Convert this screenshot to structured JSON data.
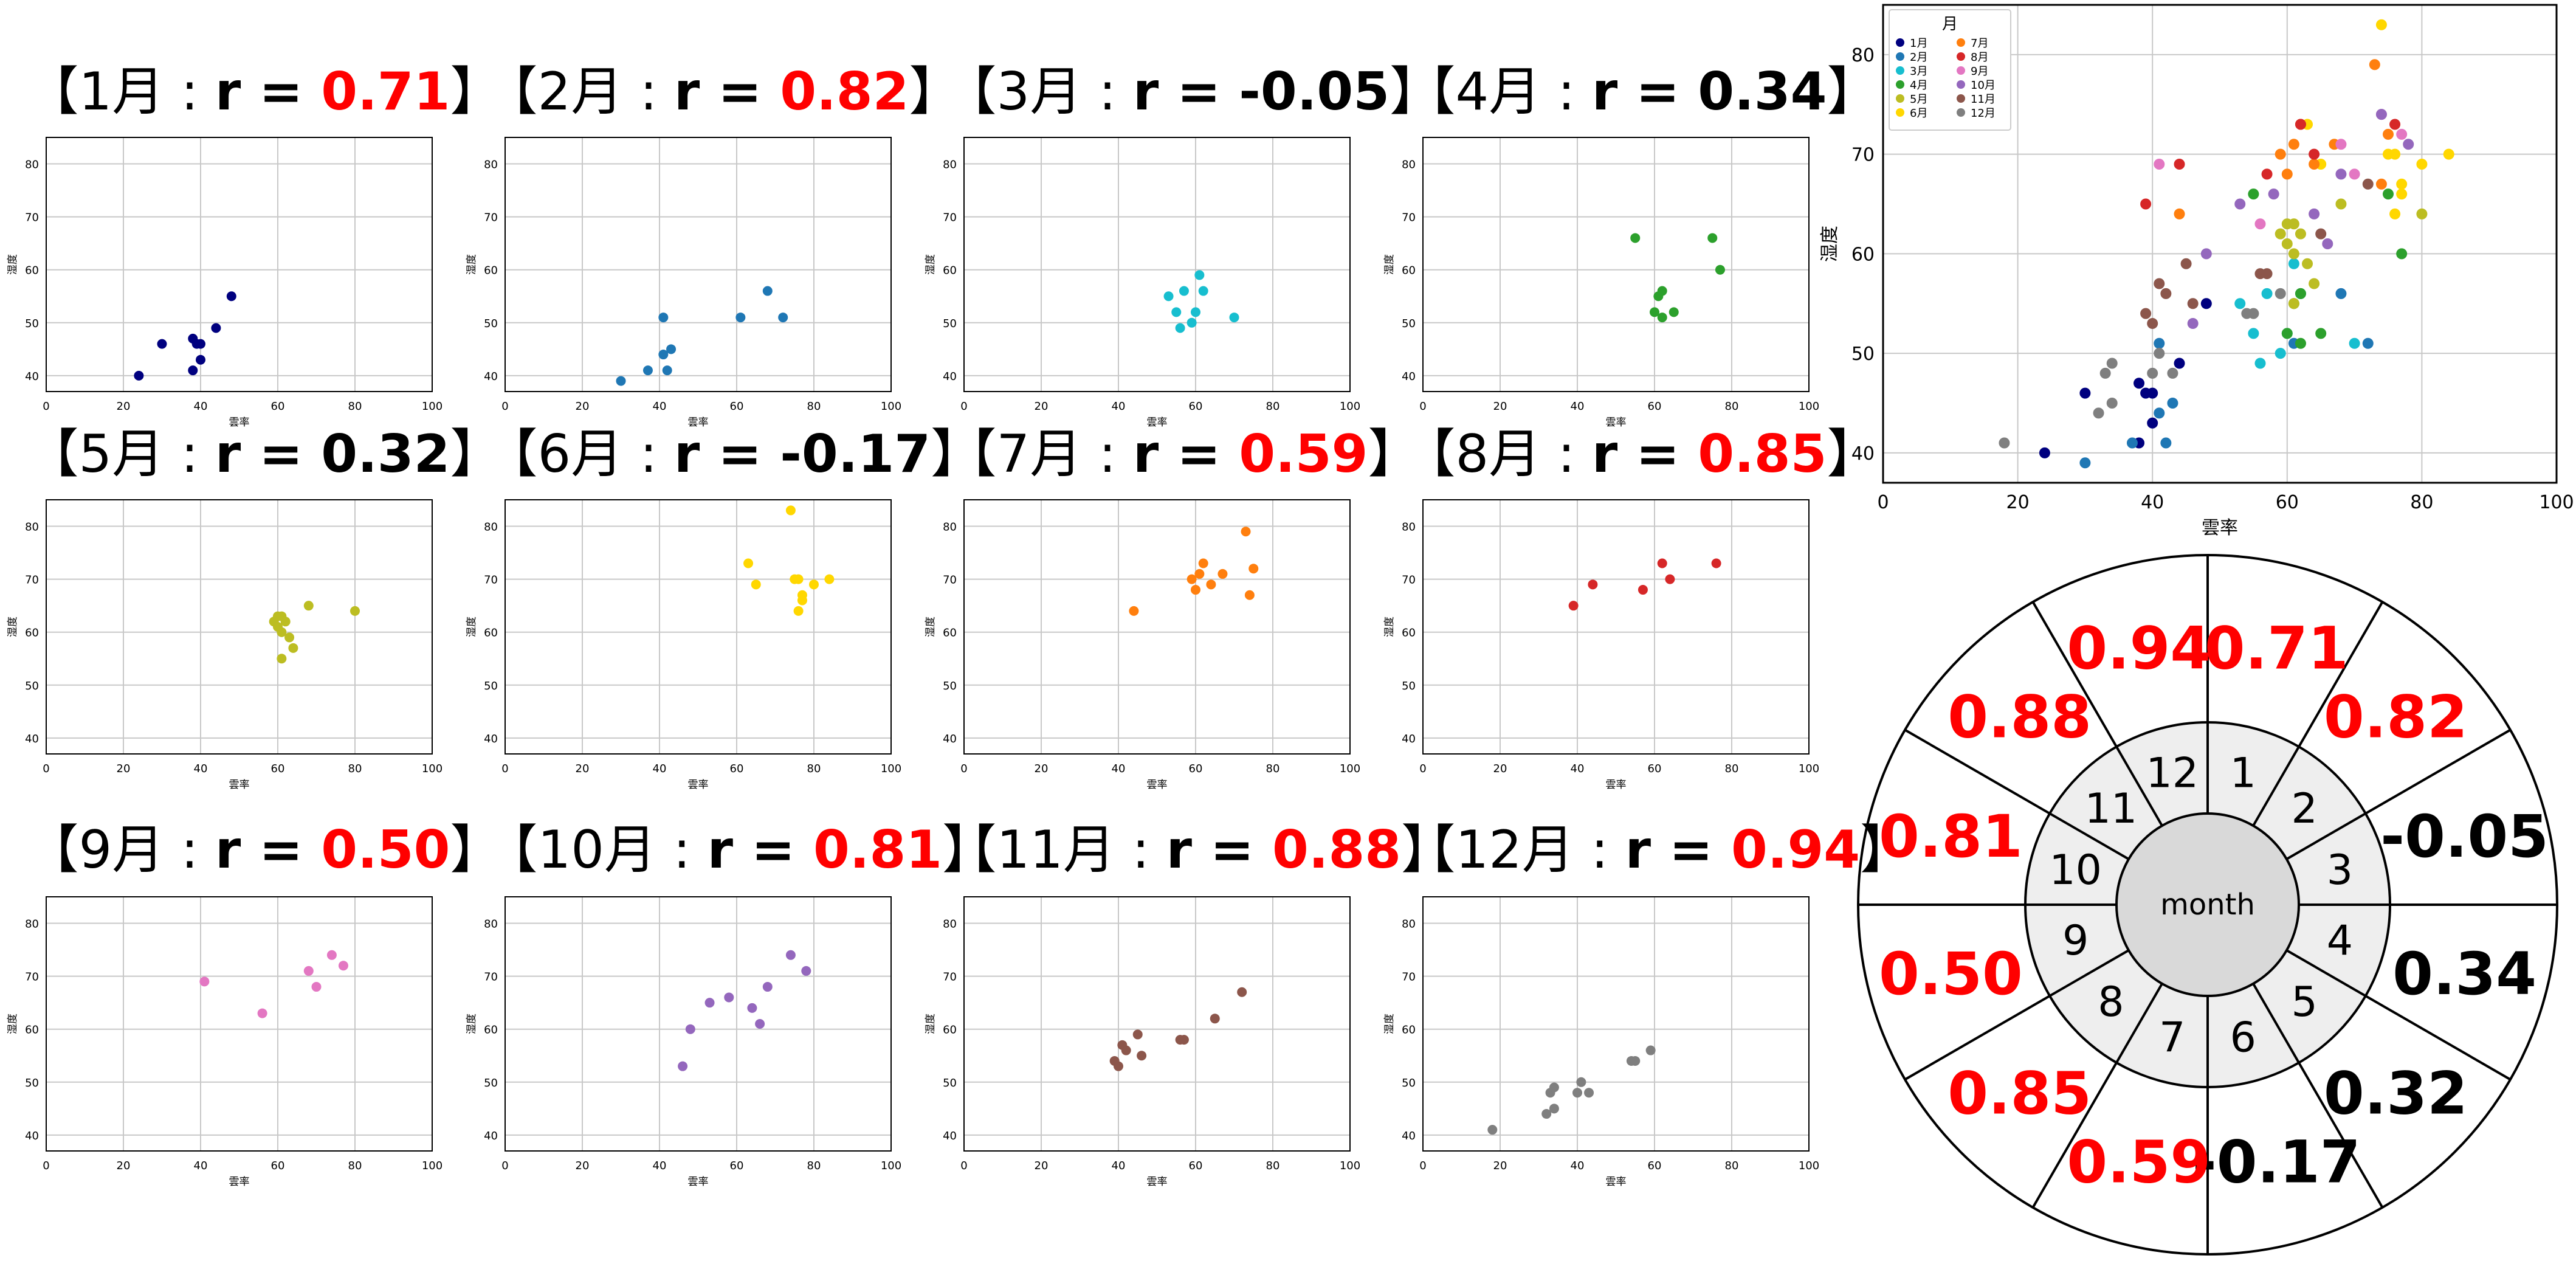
{
  "colors": {
    "axis": "#000000",
    "grid": "#c8c8c8",
    "positive_strong": "#ff0000",
    "weak": "#000000",
    "inner_ring_fill": "#eeeeee",
    "center_fill": "#d9d9d9"
  },
  "titles": [
    {
      "prefix": "【1月 : ",
      "r_label": "r = ",
      "value": "0.71",
      "suffix": "】",
      "strong": true
    },
    {
      "prefix": "【2月 : ",
      "r_label": "r = ",
      "value": "0.82",
      "suffix": "】",
      "strong": true
    },
    {
      "prefix": "【3月 : ",
      "r_label": "r = ",
      "value": "-0.05",
      "suffix": "】",
      "strong": false
    },
    {
      "prefix": "【4月 : ",
      "r_label": "r = ",
      "value": "0.34",
      "suffix": "】",
      "strong": false
    },
    {
      "prefix": "【5月 : ",
      "r_label": "r = ",
      "value": "0.32",
      "suffix": "】",
      "strong": false
    },
    {
      "prefix": "【6月 : ",
      "r_label": "r = ",
      "value": "-0.17",
      "suffix": "】",
      "strong": false
    },
    {
      "prefix": "【7月 : ",
      "r_label": "r = ",
      "value": "0.59",
      "suffix": "】",
      "strong": true
    },
    {
      "prefix": "【8月 : ",
      "r_label": "r = ",
      "value": "0.85",
      "suffix": "】",
      "strong": true
    },
    {
      "prefix": "【9月 : ",
      "r_label": "r = ",
      "value": "0.50",
      "suffix": "】",
      "strong": true
    },
    {
      "prefix": "【10月 : ",
      "r_label": "r = ",
      "value": "0.81",
      "suffix": "】",
      "strong": true
    },
    {
      "prefix": "【11月 : ",
      "r_label": "r = ",
      "value": "0.88",
      "suffix": "】",
      "strong": true
    },
    {
      "prefix": "【12月 : ",
      "r_label": "r = ",
      "value": "0.94",
      "suffix": "】",
      "strong": true
    }
  ],
  "chart_data": [
    {
      "type": "scatter",
      "xlabel": "雲率",
      "ylabel": "湿度",
      "xlim": [
        0,
        100
      ],
      "ylim": [
        37,
        85
      ],
      "xticks": [
        0,
        20,
        40,
        60,
        80,
        100
      ],
      "yticks": [
        40,
        50,
        60,
        70,
        80
      ],
      "grid": true,
      "series": [
        {
          "color": "#00007f",
          "points": [
            [
              24,
              40
            ],
            [
              30,
              46
            ],
            [
              38,
              41
            ],
            [
              38,
              47
            ],
            [
              39,
              46
            ],
            [
              40,
              43
            ],
            [
              40,
              46
            ],
            [
              44,
              49
            ],
            [
              48,
              55
            ]
          ]
        },
        {
          "color": "#1f77b4",
          "points": [
            [
              30,
              39
            ],
            [
              37,
              41
            ],
            [
              41,
              51
            ],
            [
              41,
              44
            ],
            [
              42,
              41
            ],
            [
              43,
              45
            ],
            [
              61,
              51
            ],
            [
              68,
              56
            ],
            [
              72,
              51
            ]
          ]
        },
        {
          "color": "#17becf",
          "points": [
            [
              53,
              55
            ],
            [
              55,
              52
            ],
            [
              56,
              49
            ],
            [
              57,
              56
            ],
            [
              59,
              50
            ],
            [
              60,
              52
            ],
            [
              61,
              59
            ],
            [
              62,
              56
            ],
            [
              70,
              51
            ]
          ]
        },
        {
          "color": "#2ca02c",
          "points": [
            [
              55,
              66
            ],
            [
              60,
              52
            ],
            [
              61,
              55
            ],
            [
              62,
              56
            ],
            [
              62,
              51
            ],
            [
              65,
              52
            ],
            [
              75,
              66
            ],
            [
              77,
              60
            ]
          ]
        },
        {
          "color": "#bcbd22",
          "points": [
            [
              59,
              62
            ],
            [
              60,
              63
            ],
            [
              60,
              61
            ],
            [
              61,
              63
            ],
            [
              61,
              60
            ],
            [
              61,
              55
            ],
            [
              62,
              62
            ],
            [
              63,
              59
            ],
            [
              64,
              57
            ],
            [
              68,
              65
            ],
            [
              80,
              64
            ]
          ]
        },
        {
          "color": "#ffd700",
          "points": [
            [
              63,
              73
            ],
            [
              65,
              69
            ],
            [
              74,
              83
            ],
            [
              75,
              70
            ],
            [
              76,
              64
            ],
            [
              76,
              70
            ],
            [
              77,
              66
            ],
            [
              77,
              67
            ],
            [
              80,
              69
            ],
            [
              84,
              70
            ]
          ]
        },
        {
          "color": "#ff7f0e",
          "points": [
            [
              44,
              64
            ],
            [
              59,
              70
            ],
            [
              60,
              68
            ],
            [
              61,
              71
            ],
            [
              62,
              73
            ],
            [
              64,
              69
            ],
            [
              67,
              71
            ],
            [
              73,
              79
            ],
            [
              74,
              67
            ],
            [
              75,
              72
            ]
          ]
        },
        {
          "color": "#d62728",
          "points": [
            [
              39,
              65
            ],
            [
              44,
              69
            ],
            [
              57,
              68
            ],
            [
              62,
              73
            ],
            [
              64,
              70
            ],
            [
              76,
              73
            ]
          ]
        },
        {
          "color": "#e377c2",
          "points": [
            [
              41,
              69
            ],
            [
              56,
              63
            ],
            [
              68,
              71
            ],
            [
              70,
              68
            ],
            [
              74,
              74
            ],
            [
              77,
              72
            ]
          ]
        },
        {
          "color": "#9467bd",
          "points": [
            [
              46,
              53
            ],
            [
              48,
              60
            ],
            [
              53,
              65
            ],
            [
              58,
              66
            ],
            [
              64,
              64
            ],
            [
              66,
              61
            ],
            [
              68,
              68
            ],
            [
              74,
              74
            ],
            [
              78,
              71
            ]
          ]
        },
        {
          "color": "#8c564b",
          "points": [
            [
              39,
              54
            ],
            [
              40,
              53
            ],
            [
              41,
              57
            ],
            [
              42,
              56
            ],
            [
              45,
              59
            ],
            [
              46,
              55
            ],
            [
              56,
              58
            ],
            [
              57,
              58
            ],
            [
              65,
              62
            ],
            [
              72,
              67
            ]
          ]
        },
        {
          "color": "#7f7f7f",
          "points": [
            [
              18,
              41
            ],
            [
              32,
              44
            ],
            [
              33,
              48
            ],
            [
              34,
              49
            ],
            [
              34,
              45
            ],
            [
              40,
              48
            ],
            [
              41,
              50
            ],
            [
              43,
              48
            ],
            [
              54,
              54
            ],
            [
              55,
              54
            ],
            [
              59,
              56
            ]
          ]
        }
      ]
    },
    {
      "type": "scatter",
      "xlabel": "雲率",
      "ylabel": "湿度",
      "xlim": [
        0,
        100
      ],
      "ylim": [
        37,
        85
      ],
      "xticks": [
        0,
        20,
        40,
        60,
        80,
        100
      ],
      "yticks": [
        40,
        50,
        60,
        70,
        80
      ],
      "grid": true,
      "legend": {
        "title": "月",
        "position": "top-left",
        "entries": [
          "1月",
          "2月",
          "3月",
          "4月",
          "5月",
          "6月",
          "7月",
          "8月",
          "9月",
          "10月",
          "11月",
          "12月"
        ]
      },
      "series_ref": "all twelve monthly series above"
    }
  ],
  "wheel": {
    "center_label": "month",
    "months": [
      "1",
      "2",
      "3",
      "4",
      "5",
      "6",
      "7",
      "8",
      "9",
      "10",
      "11",
      "12"
    ],
    "values": [
      "0.71",
      "0.82",
      "-0.05",
      "0.34",
      "0.32",
      "-0.17",
      "0.59",
      "0.85",
      "0.50",
      "0.81",
      "0.88",
      "0.94"
    ],
    "strong": [
      true,
      true,
      false,
      false,
      false,
      false,
      true,
      true,
      true,
      true,
      true,
      true
    ]
  }
}
